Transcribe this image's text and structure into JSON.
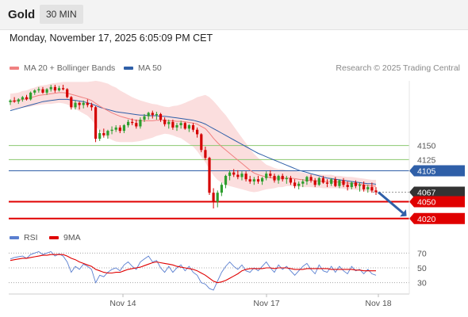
{
  "header": {
    "symbol": "Gold",
    "timeframe": "30 MIN",
    "timestamp": "Monday, November 17, 2025 6:05:09 PM CET"
  },
  "legend": {
    "ma20": {
      "label": "MA 20 + Bollinger Bands",
      "color": "#f08080"
    },
    "ma50": {
      "label": "MA 50",
      "color": "#2f5fa8"
    },
    "credit": "Research © 2025 Trading Central"
  },
  "rsi_legend": {
    "rsi": {
      "label": "RSI",
      "color": "#5a7fd0"
    },
    "ma9": {
      "label": "9MA",
      "color": "#e00000"
    }
  },
  "colors": {
    "bull": "#2e9e2e",
    "bear": "#d40000",
    "band_fill": "#fbdede",
    "target": "#e00000",
    "level_green": "#8cc870",
    "level_blue": "#2f5fa8",
    "arrow": "#2f5fa8",
    "current": "#333333"
  },
  "chart_data": [
    {
      "type": "candlestick",
      "title": "Gold",
      "timeframe": "30 MIN",
      "x_ticks": [
        "Nov 14",
        "Nov 17",
        "Nov 18"
      ],
      "ylim": [
        4000,
        4265
      ],
      "candles": [
        [
          4227,
          4232,
          4222,
          4230
        ],
        [
          4230,
          4236,
          4226,
          4228
        ],
        [
          4228,
          4234,
          4224,
          4232
        ],
        [
          4232,
          4238,
          4228,
          4236
        ],
        [
          4236,
          4240,
          4230,
          4232
        ],
        [
          4232,
          4246,
          4230,
          4244
        ],
        [
          4244,
          4250,
          4240,
          4248
        ],
        [
          4248,
          4254,
          4244,
          4250
        ],
        [
          4250,
          4254,
          4242,
          4244
        ],
        [
          4244,
          4252,
          4240,
          4250
        ],
        [
          4250,
          4258,
          4246,
          4254
        ],
        [
          4254,
          4258,
          4244,
          4248
        ],
        [
          4248,
          4256,
          4246,
          4252
        ],
        [
          4252,
          4258,
          4248,
          4250
        ],
        [
          4250,
          4252,
          4234,
          4236
        ],
        [
          4236,
          4238,
          4214,
          4218
        ],
        [
          4218,
          4230,
          4214,
          4226
        ],
        [
          4226,
          4228,
          4214,
          4222
        ],
        [
          4222,
          4230,
          4216,
          4226
        ],
        [
          4226,
          4232,
          4218,
          4222
        ],
        [
          4222,
          4226,
          4212,
          4218
        ],
        [
          4218,
          4220,
          4156,
          4162
        ],
        [
          4162,
          4178,
          4158,
          4172
        ],
        [
          4172,
          4180,
          4164,
          4168
        ],
        [
          4168,
          4178,
          4162,
          4176
        ],
        [
          4176,
          4184,
          4170,
          4178
        ],
        [
          4178,
          4186,
          4174,
          4182
        ],
        [
          4182,
          4186,
          4172,
          4176
        ],
        [
          4176,
          4188,
          4172,
          4186
        ],
        [
          4186,
          4196,
          4182,
          4192
        ],
        [
          4192,
          4198,
          4186,
          4190
        ],
        [
          4190,
          4196,
          4180,
          4184
        ],
        [
          4184,
          4200,
          4180,
          4196
        ],
        [
          4196,
          4206,
          4192,
          4202
        ],
        [
          4202,
          4210,
          4196,
          4208
        ],
        [
          4208,
          4212,
          4198,
          4204
        ],
        [
          4204,
          4210,
          4196,
          4206
        ],
        [
          4206,
          4208,
          4192,
          4196
        ],
        [
          4196,
          4200,
          4184,
          4188
        ],
        [
          4188,
          4196,
          4180,
          4192
        ],
        [
          4192,
          4196,
          4178,
          4182
        ],
        [
          4182,
          4190,
          4176,
          4186
        ],
        [
          4186,
          4194,
          4180,
          4190
        ],
        [
          4190,
          4192,
          4178,
          4180
        ],
        [
          4180,
          4188,
          4174,
          4186
        ],
        [
          4186,
          4190,
          4174,
          4178
        ],
        [
          4178,
          4182,
          4164,
          4170
        ],
        [
          4170,
          4172,
          4138,
          4142
        ],
        [
          4142,
          4148,
          4124,
          4128
        ],
        [
          4128,
          4130,
          4062,
          4066
        ],
        [
          4066,
          4074,
          4038,
          4050
        ],
        [
          4050,
          4070,
          4040,
          4066
        ],
        [
          4066,
          4084,
          4060,
          4080
        ],
        [
          4080,
          4098,
          4074,
          4096
        ],
        [
          4096,
          4106,
          4088,
          4102
        ],
        [
          4102,
          4108,
          4094,
          4098
        ],
        [
          4098,
          4106,
          4090,
          4094
        ],
        [
          4094,
          4104,
          4088,
          4100
        ],
        [
          4100,
          4104,
          4086,
          4090
        ],
        [
          4090,
          4096,
          4082,
          4086
        ],
        [
          4086,
          4094,
          4080,
          4090
        ],
        [
          4090,
          4096,
          4082,
          4086
        ],
        [
          4086,
          4094,
          4080,
          4092
        ],
        [
          4092,
          4104,
          4088,
          4100
        ],
        [
          4100,
          4106,
          4092,
          4096
        ],
        [
          4096,
          4100,
          4084,
          4088
        ],
        [
          4088,
          4098,
          4082,
          4096
        ],
        [
          4096,
          4100,
          4086,
          4090
        ],
        [
          4090,
          4096,
          4082,
          4092
        ],
        [
          4092,
          4096,
          4080,
          4084
        ],
        [
          4084,
          4090,
          4074,
          4078
        ],
        [
          4078,
          4086,
          4072,
          4082
        ],
        [
          4082,
          4090,
          4076,
          4086
        ],
        [
          4086,
          4096,
          4080,
          4094
        ],
        [
          4094,
          4098,
          4084,
          4088
        ],
        [
          4088,
          4092,
          4076,
          4080
        ],
        [
          4080,
          4094,
          4078,
          4092
        ],
        [
          4092,
          4096,
          4082,
          4084
        ],
        [
          4084,
          4090,
          4076,
          4082
        ],
        [
          4082,
          4092,
          4078,
          4090
        ],
        [
          4090,
          4094,
          4076,
          4078
        ],
        [
          4078,
          4090,
          4074,
          4088
        ],
        [
          4088,
          4092,
          4076,
          4080
        ],
        [
          4080,
          4086,
          4070,
          4076
        ],
        [
          4076,
          4086,
          4072,
          4084
        ],
        [
          4084,
          4088,
          4074,
          4078
        ],
        [
          4078,
          4084,
          4068,
          4080
        ],
        [
          4080,
          4086,
          4068,
          4072
        ],
        [
          4072,
          4080,
          4066,
          4076
        ],
        [
          4076,
          4084,
          4066,
          4070
        ],
        [
          4070,
          4076,
          4062,
          4067
        ]
      ],
      "ma20": [
        4228,
        4229,
        4230,
        4232,
        4233,
        4235,
        4237,
        4239,
        4240,
        4241,
        4242,
        4243,
        4244,
        4244,
        4243,
        4241,
        4239,
        4237,
        4235,
        4233,
        4230,
        4225,
        4220,
        4216,
        4212,
        4208,
        4205,
        4202,
        4200,
        4198,
        4196,
        4195,
        4194,
        4194,
        4194,
        4194,
        4195,
        4195,
        4195,
        4194,
        4194,
        4193,
        4193,
        4192,
        4191,
        4190,
        4188,
        4184,
        4180,
        4172,
        4163,
        4155,
        4148,
        4142,
        4136,
        4130,
        4124,
        4118,
        4112,
        4106,
        4101,
        4098,
        4096,
        4094,
        4093,
        4092,
        4092,
        4092,
        4092,
        4092,
        4091,
        4090,
        4089,
        4088,
        4088,
        4087,
        4087,
        4086,
        4086,
        4086,
        4085,
        4085,
        4084,
        4083,
        4083,
        4082,
        4081,
        4080,
        4079,
        4078,
        4078
      ],
      "ma50": [
        4212,
        4214,
        4216,
        4218,
        4220,
        4222,
        4224,
        4226,
        4228,
        4229,
        4230,
        4231,
        4232,
        4232,
        4232,
        4231,
        4230,
        4229,
        4228,
        4226,
        4224,
        4221,
        4218,
        4216,
        4214,
        4212,
        4210,
        4209,
        4208,
        4207,
        4206,
        4205,
        4204,
        4204,
        4203,
        4203,
        4203,
        4202,
        4202,
        4201,
        4200,
        4199,
        4198,
        4197,
        4196,
        4195,
        4193,
        4191,
        4188,
        4184,
        4180,
        4176,
        4172,
        4168,
        4164,
        4160,
        4156,
        4152,
        4148,
        4144,
        4140,
        4136,
        4133,
        4130,
        4127,
        4124,
        4121,
        4118,
        4115,
        4112,
        4109,
        4106,
        4104,
        4102,
        4100,
        4098,
        4096,
        4094,
        4092,
        4091,
        4090,
        4089,
        4088,
        4087,
        4086,
        4085,
        4084,
        4083,
        4082,
        4082,
        4081
      ],
      "bb_width": [
        14,
        14,
        14,
        15,
        15,
        16,
        16,
        17,
        17,
        17,
        18,
        18,
        18,
        19,
        20,
        22,
        24,
        26,
        28,
        30,
        34,
        40,
        44,
        46,
        48,
        48,
        48,
        46,
        44,
        42,
        40,
        38,
        36,
        34,
        32,
        30,
        28,
        26,
        24,
        24,
        26,
        28,
        30,
        34,
        38,
        42,
        48,
        54,
        60,
        64,
        66,
        66,
        64,
        62,
        58,
        54,
        50,
        46,
        42,
        38,
        34,
        30,
        26,
        22,
        20,
        18,
        16,
        16,
        14,
        14,
        14,
        13,
        13,
        12,
        12,
        12,
        12,
        12,
        12,
        12,
        11,
        11,
        11,
        11,
        11,
        11,
        11,
        11,
        11,
        11,
        11
      ],
      "levels": [
        {
          "value": 4150,
          "label": "4150",
          "kind": "resistance"
        },
        {
          "value": 4125,
          "label": "4125",
          "kind": "resistance"
        },
        {
          "value": 4105,
          "label": "4105",
          "kind": "pivot"
        },
        {
          "value": 4067,
          "label": "4067",
          "kind": "current"
        },
        {
          "value": 4050,
          "label": "4050",
          "kind": "target"
        },
        {
          "value": 4020,
          "label": "4020",
          "kind": "target"
        }
      ],
      "forecast_arrow": {
        "from": 4067,
        "to": 4030
      }
    },
    {
      "type": "line",
      "title": "RSI",
      "ylim": [
        20,
        80
      ],
      "y_ticks": [
        "70",
        "50",
        "30"
      ],
      "rsi": [
        62,
        64,
        65,
        66,
        63,
        68,
        70,
        72,
        68,
        70,
        72,
        66,
        69,
        66,
        58,
        44,
        52,
        48,
        55,
        52,
        48,
        30,
        40,
        38,
        44,
        48,
        50,
        46,
        54,
        58,
        52,
        48,
        58,
        62,
        66,
        58,
        60,
        50,
        44,
        52,
        44,
        50,
        54,
        46,
        52,
        44,
        40,
        30,
        28,
        22,
        20,
        32,
        44,
        52,
        58,
        52,
        48,
        54,
        46,
        44,
        50,
        46,
        52,
        58,
        50,
        44,
        54,
        48,
        52,
        46,
        40,
        46,
        52,
        56,
        48,
        42,
        54,
        46,
        44,
        52,
        44,
        52,
        46,
        42,
        52,
        46,
        48,
        42,
        48,
        42,
        40
      ],
      "ma9": [
        60,
        61,
        62,
        63,
        63,
        64,
        65,
        66,
        67,
        67,
        68,
        68,
        68,
        68,
        66,
        63,
        61,
        58,
        56,
        54,
        52,
        48,
        46,
        44,
        43,
        43,
        44,
        44,
        46,
        48,
        49,
        50,
        51,
        53,
        55,
        57,
        58,
        57,
        56,
        55,
        54,
        52,
        51,
        50,
        49,
        48,
        46,
        43,
        40,
        36,
        32,
        30,
        31,
        33,
        36,
        39,
        42,
        46,
        48,
        49,
        49,
        49,
        49,
        50,
        50,
        49,
        50,
        50,
        50,
        49,
        48,
        48,
        48,
        49,
        49,
        49,
        49,
        49,
        49,
        48,
        48,
        48,
        48,
        48,
        48,
        47,
        47,
        46,
        46,
        46,
        46
      ]
    }
  ]
}
